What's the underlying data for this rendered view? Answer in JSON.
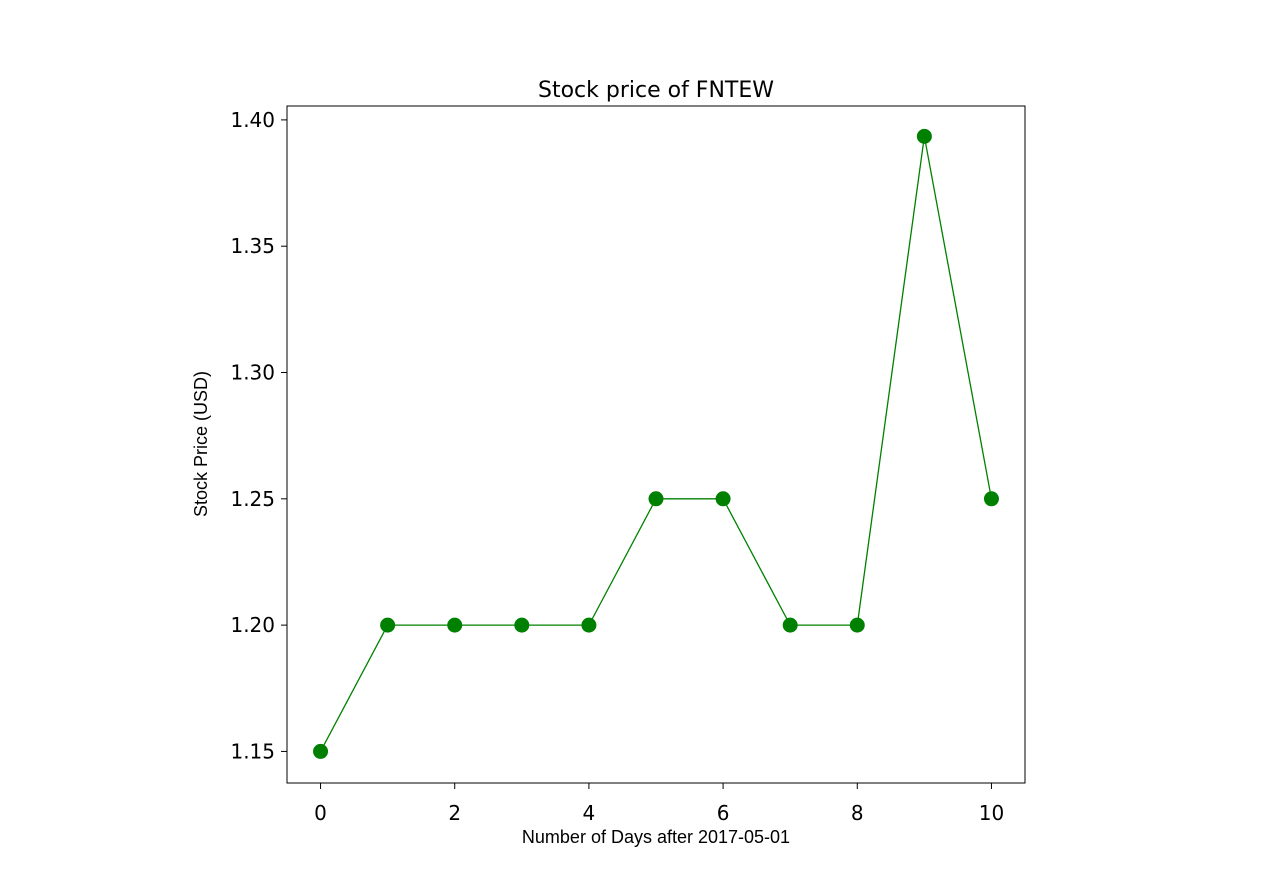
{
  "chart_data": {
    "type": "line",
    "title": "Stock price of FNTEW",
    "xlabel": "Number of Days after 2017-05-01",
    "ylabel": "Stock Price (USD)",
    "x": [
      0,
      1,
      2,
      3,
      4,
      5,
      6,
      7,
      8,
      9,
      10
    ],
    "series": [
      {
        "values": [
          1.15,
          1.2,
          1.2,
          1.2,
          1.2,
          1.25,
          1.25,
          1.2,
          1.2,
          1.3935,
          1.25
        ],
        "color": "#008000",
        "marker": "circle"
      }
    ],
    "xlim": [
      -0.5,
      10.5
    ],
    "ylim": [
      1.1375,
      1.4055
    ],
    "xticks": [
      0,
      2,
      4,
      6,
      8,
      10
    ],
    "xtick_labels": [
      "0",
      "2",
      "4",
      "6",
      "8",
      "10"
    ],
    "yticks": [
      1.15,
      1.2,
      1.25,
      1.3,
      1.35,
      1.4
    ],
    "ytick_labels": [
      "1.15",
      "1.20",
      "1.25",
      "1.30",
      "1.35",
      "1.40"
    ],
    "grid": false,
    "legend": "none"
  }
}
